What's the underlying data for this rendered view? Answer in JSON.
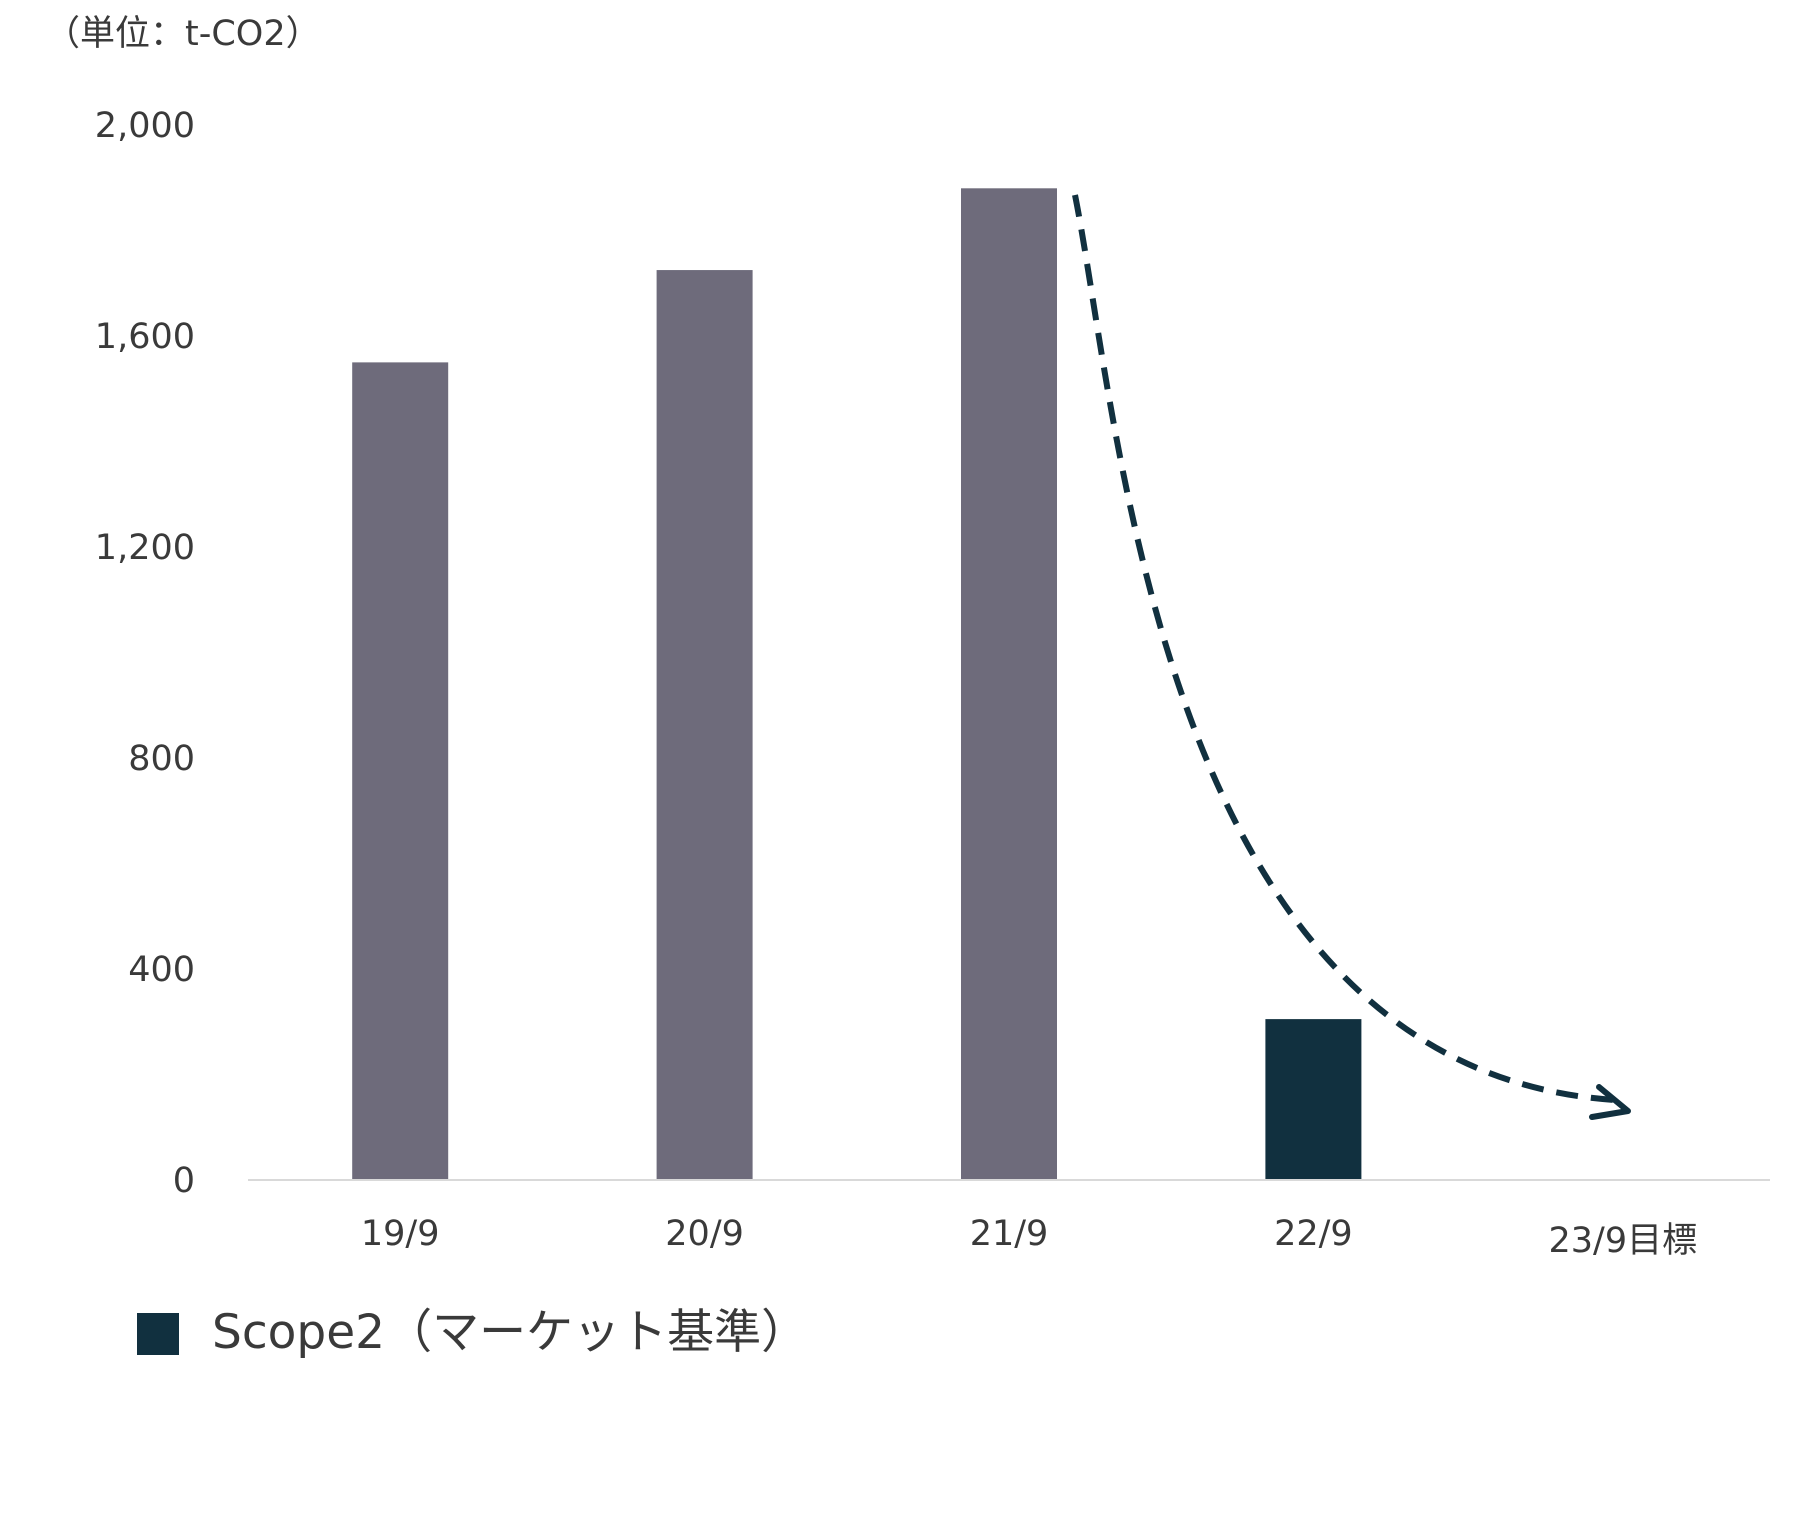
{
  "chart_data": {
    "type": "bar",
    "unit_label": "（単位：t-CO2）",
    "categories": [
      "19/9",
      "20/9",
      "21/9",
      "22/9",
      "23/9目標"
    ],
    "values": [
      1550,
      1725,
      1880,
      305,
      null
    ],
    "ylim": [
      0,
      2000
    ],
    "yticks": [
      0,
      400,
      800,
      1200,
      1600,
      2000
    ],
    "ytick_labels": [
      "0",
      "400",
      "800",
      "1,200",
      "1,600",
      "2,000"
    ],
    "grid": false,
    "highlight_category": "22/9",
    "series": [
      {
        "name": "Scope2（マーケット基準）"
      }
    ],
    "legend_position": "bottom-left",
    "annotation": "dashed-arrow-downward-trend",
    "colors": {
      "past_bar": "#6e6b7b",
      "highlight_bar": "#11303f",
      "arrow": "#11303f",
      "axis": "#d9d9d9",
      "legend_swatch": "#11303f"
    }
  }
}
